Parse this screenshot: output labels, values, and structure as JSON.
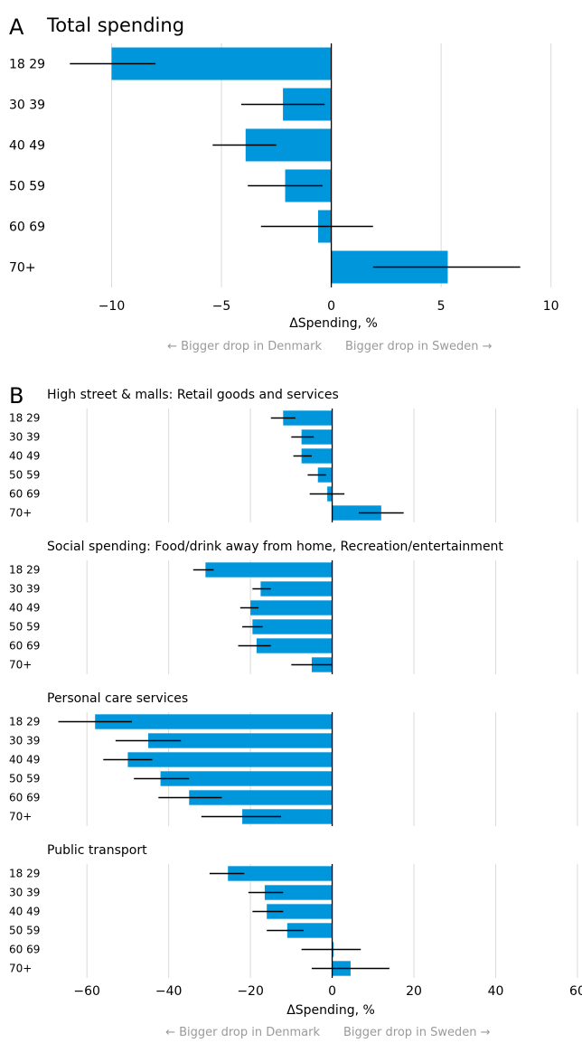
{
  "colors": {
    "bar": "#0096dc",
    "grid": "#d9d9d9",
    "zero": "#000000",
    "error": "#000000",
    "note": "#9a9a9a"
  },
  "chart_data": [
    {
      "type": "bar",
      "orientation": "horizontal",
      "panel_letter": "A",
      "title": "Total spending",
      "categories": [
        "18 29",
        "30 39",
        "40 49",
        "50 59",
        "60 69",
        "70+"
      ],
      "values": [
        -10.0,
        -2.2,
        -3.9,
        -2.1,
        -0.6,
        5.3
      ],
      "error_low": [
        -11.9,
        -4.1,
        -5.4,
        -3.8,
        -3.2,
        1.9
      ],
      "error_high": [
        -8.0,
        -0.3,
        -2.5,
        -0.4,
        1.9,
        8.6
      ],
      "xlim": [
        -12.2,
        11.0
      ],
      "xticks": [
        -10,
        -5,
        0,
        5,
        10
      ],
      "xtick_labels": [
        "−10",
        "−5",
        "0",
        "5",
        "10"
      ],
      "xlabel": "ΔSpending, %",
      "note_left": "← Bigger drop in Denmark",
      "note_right": "Bigger drop in Sweden →",
      "grid": true
    },
    {
      "type": "bar",
      "orientation": "horizontal",
      "panel_letter": "B",
      "xlim": [
        -68,
        62
      ],
      "xticks": [
        -60,
        -40,
        -20,
        0,
        20,
        40,
        60
      ],
      "xtick_labels": [
        "−60",
        "−40",
        "−20",
        "0",
        "20",
        "40",
        "60"
      ],
      "xlabel": "ΔSpending, %",
      "note_left": "← Bigger drop in Denmark",
      "note_right": "Bigger drop in Sweden →",
      "grid": true,
      "facets": [
        {
          "title": "High street & malls: Retail goods and services",
          "categories": [
            "18 29",
            "30 39",
            "40 49",
            "50 59",
            "60 69",
            "70+"
          ],
          "values": [
            -12,
            -7.5,
            -7.5,
            -3.5,
            -1.2,
            12
          ],
          "error_low": [
            -15,
            -10,
            -9.5,
            -6,
            -5.5,
            6.5
          ],
          "error_high": [
            -9,
            -4.5,
            -5,
            -1.5,
            3,
            17.5
          ]
        },
        {
          "title": "Social spending: Food/drink away from home, Recreation/entertainment",
          "categories": [
            "18 29",
            "30 39",
            "40 49",
            "50 59",
            "60 69",
            "70+"
          ],
          "values": [
            -31,
            -17.5,
            -20,
            -19.5,
            -18.5,
            -5
          ],
          "error_low": [
            -34,
            -19.5,
            -22.5,
            -22,
            -23,
            -10
          ],
          "error_high": [
            -29,
            -15,
            -18,
            -17,
            -15,
            0
          ]
        },
        {
          "title": "Personal care services",
          "categories": [
            "18 29",
            "30 39",
            "40 49",
            "50 59",
            "60 69",
            "70+"
          ],
          "values": [
            -58,
            -45,
            -50,
            -42,
            -35,
            -22
          ],
          "error_low": [
            -67,
            -53,
            -56,
            -48.5,
            -42.5,
            -32
          ],
          "error_high": [
            -49,
            -37,
            -44,
            -35,
            -27,
            -12.5
          ]
        },
        {
          "title": "Public transport",
          "categories": [
            "18 29",
            "30 39",
            "40 49",
            "50 59",
            "60 69",
            "70+"
          ],
          "values": [
            -25.5,
            -16.5,
            -16,
            -11,
            0,
            4.5
          ],
          "error_low": [
            -30,
            -20.5,
            -19.5,
            -16,
            -7.5,
            -5
          ],
          "error_high": [
            -21.5,
            -12,
            -12,
            -7,
            7,
            14
          ]
        }
      ]
    }
  ]
}
